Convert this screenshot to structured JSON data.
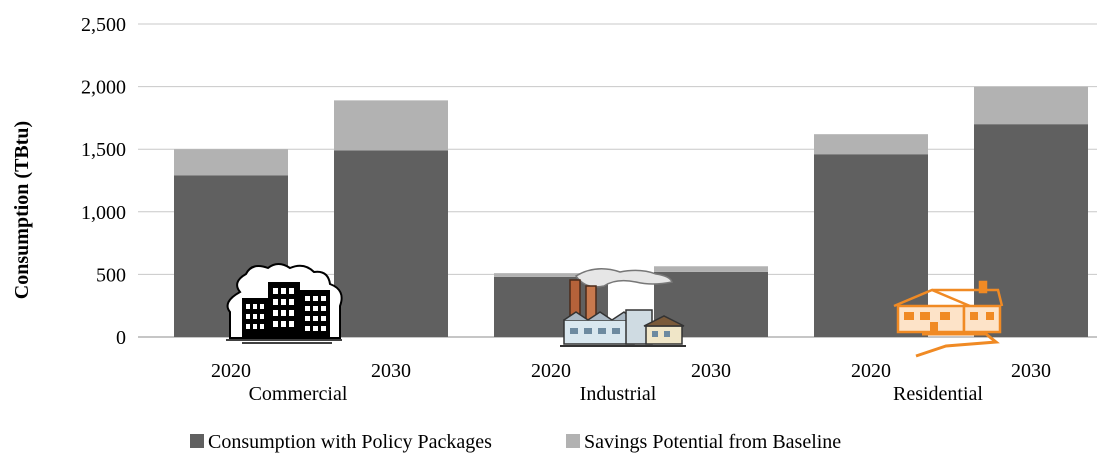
{
  "chart_data": {
    "type": "bar",
    "stacked": true,
    "ylabel": "Consumption (TBtu)",
    "ylim": [
      0,
      2500
    ],
    "yticks": [
      "0",
      "500",
      "1,000",
      "1,500",
      "2,000",
      "2,500"
    ],
    "grid": true,
    "legend_position": "bottom",
    "groups": [
      {
        "name": "Commercial",
        "years": [
          "2020",
          "2030"
        ],
        "icon": "office-buildings-icon"
      },
      {
        "name": "Industrial",
        "years": [
          "2020",
          "2030"
        ],
        "icon": "factory-icon"
      },
      {
        "name": "Residential",
        "years": [
          "2020",
          "2030"
        ],
        "icon": "house-icon"
      }
    ],
    "series": [
      {
        "name": "Consumption with Policy Packages",
        "color": "#606060",
        "values": [
          1290,
          1490,
          480,
          520,
          1460,
          1700
        ]
      },
      {
        "name": "Savings Potential from Baseline",
        "color": "#b2b2b2",
        "values": [
          210,
          400,
          30,
          45,
          160,
          300
        ]
      }
    ]
  }
}
